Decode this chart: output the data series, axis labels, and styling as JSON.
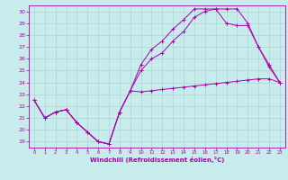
{
  "xlabel": "Windchill (Refroidissement éolien,°C)",
  "bg_color": "#c8ecec",
  "grid_color": "#b0d8d8",
  "line_color": "#aa00aa",
  "spine_color": "#7777aa",
  "xlim": [
    -0.5,
    23.5
  ],
  "ylim": [
    18.5,
    30.5
  ],
  "xticks": [
    0,
    1,
    2,
    3,
    4,
    5,
    6,
    7,
    8,
    9,
    10,
    11,
    12,
    13,
    14,
    15,
    16,
    17,
    18,
    19,
    20,
    21,
    22,
    23
  ],
  "yticks": [
    19,
    20,
    21,
    22,
    23,
    24,
    25,
    26,
    27,
    28,
    29,
    30
  ],
  "line1_x": [
    0,
    1,
    2,
    3,
    4,
    5,
    6,
    7,
    8,
    9,
    10,
    11,
    12,
    13,
    14,
    15,
    16,
    17,
    18,
    19,
    20,
    21,
    22,
    23
  ],
  "line1_y": [
    22.5,
    21.0,
    21.5,
    21.7,
    20.6,
    19.8,
    19.0,
    18.8,
    21.5,
    23.3,
    23.2,
    23.3,
    23.4,
    23.5,
    23.6,
    23.7,
    23.8,
    23.9,
    24.0,
    24.1,
    24.2,
    24.3,
    24.3,
    24.0
  ],
  "line2_x": [
    0,
    1,
    2,
    3,
    4,
    5,
    6,
    7,
    8,
    9,
    10,
    11,
    12,
    13,
    14,
    15,
    16,
    17,
    18,
    19,
    20,
    21,
    22,
    23
  ],
  "line2_y": [
    22.5,
    21.0,
    21.5,
    21.7,
    20.6,
    19.8,
    19.0,
    18.8,
    21.5,
    23.3,
    25.0,
    26.0,
    26.5,
    27.5,
    28.3,
    29.5,
    30.0,
    30.2,
    29.0,
    28.8,
    28.8,
    27.0,
    25.5,
    24.0
  ],
  "line3_x": [
    0,
    1,
    2,
    3,
    4,
    5,
    6,
    7,
    8,
    9,
    10,
    11,
    12,
    13,
    14,
    15,
    16,
    17,
    18,
    19,
    20,
    21,
    22,
    23
  ],
  "line3_y": [
    22.5,
    21.0,
    21.5,
    21.7,
    20.6,
    19.8,
    19.0,
    18.8,
    21.5,
    23.3,
    25.5,
    26.8,
    27.5,
    28.5,
    29.3,
    30.2,
    30.2,
    30.2,
    30.2,
    30.2,
    29.0,
    27.0,
    25.3,
    24.0
  ]
}
